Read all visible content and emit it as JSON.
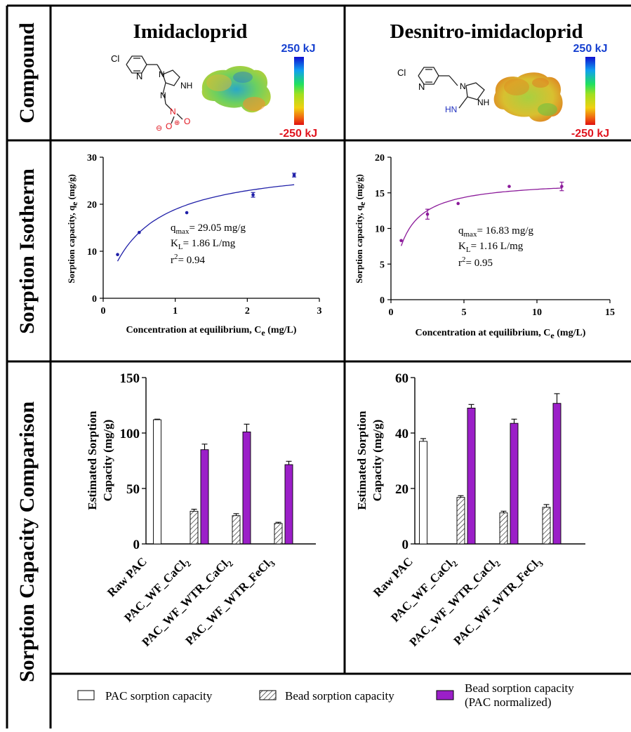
{
  "rows": {
    "compound": "Compound",
    "isotherm": "Sorption Isotherm",
    "comparison": "Sorption Capacity Comparison"
  },
  "compounds": [
    {
      "name": "Imidacloprid",
      "scale_top": "250 kJ",
      "scale_bottom": "-250 kJ",
      "mol_labels": {
        "cl": "Cl",
        "n_ring": "N",
        "n1": "N",
        "nh": "NH",
        "n_imine": "N",
        "nitro_n": "N",
        "o_minus": "O",
        "minus": "⊖",
        "plus": "⊕",
        "o": "O"
      }
    },
    {
      "name": "Desnitro-imidacloprid",
      "scale_top": "250 kJ",
      "scale_bottom": "-250 kJ",
      "mol_labels": {
        "cl": "Cl",
        "n_ring": "N",
        "n1": "N",
        "nh": "NH",
        "hn": "HN"
      }
    }
  ],
  "colors": {
    "blue_series": "#1f1fa8",
    "purple_series": "#8b1a9a",
    "bar_purple": "#9b1fc8",
    "scale_top_text": "#1640d0",
    "scale_bottom_text": "#e0141e",
    "nitro_red": "#e0141e",
    "amine_blue": "#2030c0"
  },
  "chart_data": [
    {
      "type": "scatter",
      "ylabel_main": "Sorption capacity, q",
      "ylabel_sub": "e",
      "ylabel_unit": " (mg/g)",
      "xlabel_main": "Concentration at equilibrium, C",
      "xlabel_sub": "e",
      "xlabel_unit": " (mg/L)",
      "xlim": [
        0,
        3
      ],
      "ylim": [
        0,
        30
      ],
      "xticks": [
        0,
        1,
        2,
        3
      ],
      "yticks": [
        0,
        10,
        20,
        30
      ],
      "points": [
        {
          "x": 0.2,
          "y": 9.3,
          "err": 0.1
        },
        {
          "x": 0.5,
          "y": 14.0,
          "err": 0.1
        },
        {
          "x": 1.16,
          "y": 18.2,
          "err": 0.1
        },
        {
          "x": 2.08,
          "y": 22.0,
          "err": 0.5
        },
        {
          "x": 2.65,
          "y": 26.2,
          "err": 0.4
        }
      ],
      "fit": {
        "model": "langmuir",
        "qmax": 29.05,
        "KL": 1.86,
        "x_range": [
          0.2,
          2.65
        ]
      },
      "annot": {
        "q_main": "q",
        "q_sub": "max",
        "q_val": "= 29.05 mg/g",
        "k_main": "K",
        "k_sub": "L",
        "k_val": "= 1.86 L/mg",
        "r_main": "r",
        "r_sup": "2",
        "r_val": "= 0.94"
      }
    },
    {
      "type": "scatter",
      "ylabel_main": "Sorption capacity, q",
      "ylabel_sub": "e",
      "ylabel_unit": " (mg/g)",
      "xlabel_main": "Concentration at equilibrium, C",
      "xlabel_sub": "e",
      "xlabel_unit": " (mg/L)",
      "xlim": [
        0,
        15
      ],
      "ylim": [
        0,
        20
      ],
      "xticks": [
        0,
        5,
        10,
        15
      ],
      "yticks": [
        0,
        5,
        10,
        15,
        20
      ],
      "points": [
        {
          "x": 0.7,
          "y": 8.3,
          "err": 0.1
        },
        {
          "x": 2.5,
          "y": 12.0,
          "err": 0.7
        },
        {
          "x": 4.6,
          "y": 13.5,
          "err": 0.1
        },
        {
          "x": 8.1,
          "y": 15.9,
          "err": 0.1
        },
        {
          "x": 11.7,
          "y": 15.9,
          "err": 0.6
        }
      ],
      "fit": {
        "model": "langmuir",
        "qmax": 16.83,
        "KL": 1.16,
        "x_range": [
          0.7,
          11.7
        ]
      },
      "annot": {
        "q_main": "q",
        "q_sub": "max",
        "q_val": "= 16.83 mg/g",
        "k_main": "K",
        "k_sub": "L",
        "k_val": "= 1.16 L/mg",
        "r_main": "r",
        "r_sup": "2",
        "r_val": "= 0.95"
      }
    },
    {
      "type": "bar",
      "ylabel_line1": "Estimated Sorption",
      "ylabel_line2": "Capacity (mg/g)",
      "ylim": [
        0,
        150
      ],
      "yticks": [
        0,
        50,
        100,
        150
      ],
      "categories": [
        "Raw PAC",
        "PAC_WF_CaCl",
        "PAC_WF_WTR_CaCl",
        "PAC_WF_WTR_FeCl"
      ],
      "category_subs": [
        "",
        "2",
        "2",
        "3"
      ],
      "series": [
        {
          "name": "PAC sorption capacity",
          "values": [
            112,
            null,
            null,
            null
          ],
          "errors": [
            0.5,
            null,
            null,
            null
          ]
        },
        {
          "name": "Bead sorption capacity",
          "values": [
            null,
            29.5,
            25.5,
            18.5
          ],
          "errors": [
            null,
            1.8,
            1.8,
            1.0
          ]
        },
        {
          "name": "Bead sorption capacity (PAC normalized)",
          "values": [
            null,
            85,
            101,
            71.5
          ],
          "errors": [
            null,
            5,
            7,
            3
          ]
        }
      ]
    },
    {
      "type": "bar",
      "ylabel_line1": "Estimated Sorption",
      "ylabel_line2": "Capacity (mg/g)",
      "ylim": [
        0,
        60
      ],
      "yticks": [
        0,
        20,
        40,
        60
      ],
      "categories": [
        "Raw PAC",
        "PAC_WF_CaCl",
        "PAC_WF_WTR_CaCl",
        "PAC_WF_WTR_FeCl"
      ],
      "category_subs": [
        "",
        "2",
        "2",
        "3"
      ],
      "series": [
        {
          "name": "PAC sorption capacity",
          "values": [
            37,
            null,
            null,
            null
          ],
          "errors": [
            1.0,
            null,
            null,
            null
          ]
        },
        {
          "name": "Bead sorption capacity",
          "values": [
            null,
            16.8,
            11.2,
            13.2
          ],
          "errors": [
            null,
            0.6,
            0.6,
            1.0
          ]
        },
        {
          "name": "Bead sorption capacity (PAC normalized)",
          "values": [
            null,
            49,
            43.5,
            50.7
          ],
          "errors": [
            null,
            1.3,
            1.5,
            3.5
          ]
        }
      ]
    }
  ],
  "legend": {
    "pac": "PAC sorption capacity",
    "bead": "Bead sorption capacity",
    "norm_line1": "Bead sorption capacity",
    "norm_line2": "(PAC normalized)"
  }
}
